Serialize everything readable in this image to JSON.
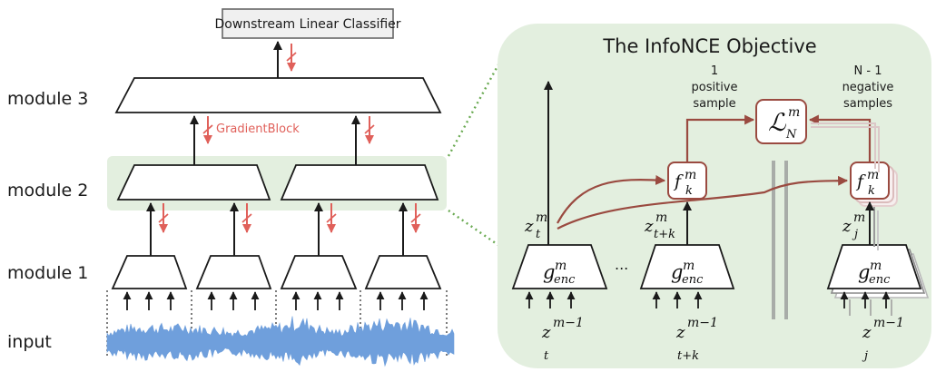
{
  "left": {
    "classifier_label": "Downstream Linear Classifier",
    "row_labels": {
      "module3": "module 3",
      "module2": "module 2",
      "module1": "module 1",
      "input": "input"
    },
    "gradient_block_label": "GradientBlock"
  },
  "right": {
    "title": "The InfoNCE Objective",
    "positive": {
      "count": "1",
      "line1": "positive",
      "line2": "sample"
    },
    "negative": {
      "count": "N - 1",
      "line1": "negative",
      "line2": "samples"
    },
    "loss": {
      "base": "ℒ",
      "sup": "m",
      "sub": "N"
    },
    "f_base": "f",
    "f_sup": "m",
    "f_sub": "k",
    "g_base": "g",
    "g_sup": "m",
    "g_sub": "enc",
    "z_base": "z",
    "z_sup_m": "m",
    "z_sup_m1": "m−1",
    "sub_t": "t",
    "sub_tk": "t+k",
    "sub_j": "j",
    "ellipsis": "..."
  },
  "colors": {
    "green_panel": "#e3efdf",
    "connector_dots": "#6aaa52",
    "gradient_red": "#e0605a",
    "f_box_border": "#9a4a40",
    "waveform_blue": "#6f9fdc",
    "divider_gray": "#a8aca8"
  }
}
